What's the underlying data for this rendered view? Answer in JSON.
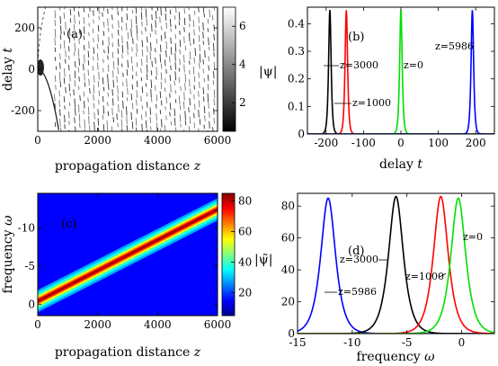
{
  "chart_data": [
    {
      "id": "a",
      "type": "heatmap",
      "panel_label": "(a)",
      "xlabel": "propagation distance",
      "xlabel_var": "z",
      "ylabel": "delay",
      "ylabel_var": "t",
      "xlim": [
        0,
        6000
      ],
      "ylim": [
        -300,
        300
      ],
      "xticks": [
        "0",
        "2000",
        "4000",
        "6000"
      ],
      "yticks": [
        "-200",
        "0",
        "200"
      ],
      "colorbar_ticks": [
        "2",
        "4",
        "6"
      ],
      "colorbar_range": [
        0.5,
        7
      ],
      "colormap": "white-gray-black (reversed gray)",
      "description_values": {
        "soliton_initial_t": 0,
        "soliton_final_t": -300
      }
    },
    {
      "id": "b",
      "type": "line",
      "panel_label": "(b)",
      "xlabel": "delay",
      "xlabel_var": "t",
      "ylabel": "|ψ|",
      "xlim": [
        -250,
        250
      ],
      "ylim": [
        0,
        0.46
      ],
      "xticks": [
        "-200",
        "-100",
        "0",
        "100",
        "200"
      ],
      "yticks": [
        "0",
        "0.1",
        "0.2",
        "0.3",
        "0.4"
      ],
      "series": [
        {
          "name": "z=3000",
          "color": "#000000",
          "center": -190,
          "peak": 0.45,
          "width": 3
        },
        {
          "name": "z=1000",
          "color": "#ff0000",
          "center": -146,
          "peak": 0.45,
          "width": 3
        },
        {
          "name": "z=0",
          "color": "#00e000",
          "center": 0,
          "peak": 0.45,
          "width": 3
        },
        {
          "name": "z=5986",
          "color": "#0000ff",
          "center": 191,
          "peak": 0.45,
          "width": 3
        }
      ],
      "annotations": [
        "z=3000",
        "z=1000",
        "z=0",
        "z=5986"
      ]
    },
    {
      "id": "c",
      "type": "heatmap",
      "panel_label": "(c)",
      "xlabel": "propagation distance",
      "xlabel_var": "z",
      "ylabel": "frequency",
      "ylabel_var": "ω",
      "xlim": [
        0,
        6000
      ],
      "ylim": [
        1.5,
        -14.5
      ],
      "xticks": [
        "0",
        "2000",
        "4000",
        "6000"
      ],
      "yticks": [
        "0",
        "-5",
        "-10"
      ],
      "colorbar_ticks": [
        "20",
        "40",
        "60",
        "80"
      ],
      "colorbar_range": [
        5,
        85
      ],
      "colormap": "jet",
      "line": {
        "omega_at_z0": -0.4,
        "omega_at_z6000": -12.4
      }
    },
    {
      "id": "d",
      "type": "line",
      "panel_label": "(d)",
      "xlabel": "frequency",
      "xlabel_var": "ω",
      "ylabel": "|ψ̃|",
      "xlim": [
        -15,
        3
      ],
      "ylim": [
        0,
        88
      ],
      "xticks": [
        "-15",
        "-10",
        "-5",
        "0"
      ],
      "yticks": [
        "0",
        "20",
        "40",
        "60",
        "80"
      ],
      "series": [
        {
          "name": "z=5986",
          "color": "#0000ff",
          "center": -12.2,
          "peak": 85,
          "width": 0.6
        },
        {
          "name": "z=3000",
          "color": "#000000",
          "center": -6.0,
          "peak": 86,
          "width": 0.6
        },
        {
          "name": "z=1000",
          "color": "#ff0000",
          "center": -1.9,
          "peak": 86,
          "width": 0.6
        },
        {
          "name": "z=0",
          "color": "#00e000",
          "center": -0.3,
          "peak": 85,
          "width": 0.6
        }
      ],
      "annotations": [
        "z=5986",
        "z=3000",
        "z=1000",
        "z=0"
      ]
    }
  ]
}
